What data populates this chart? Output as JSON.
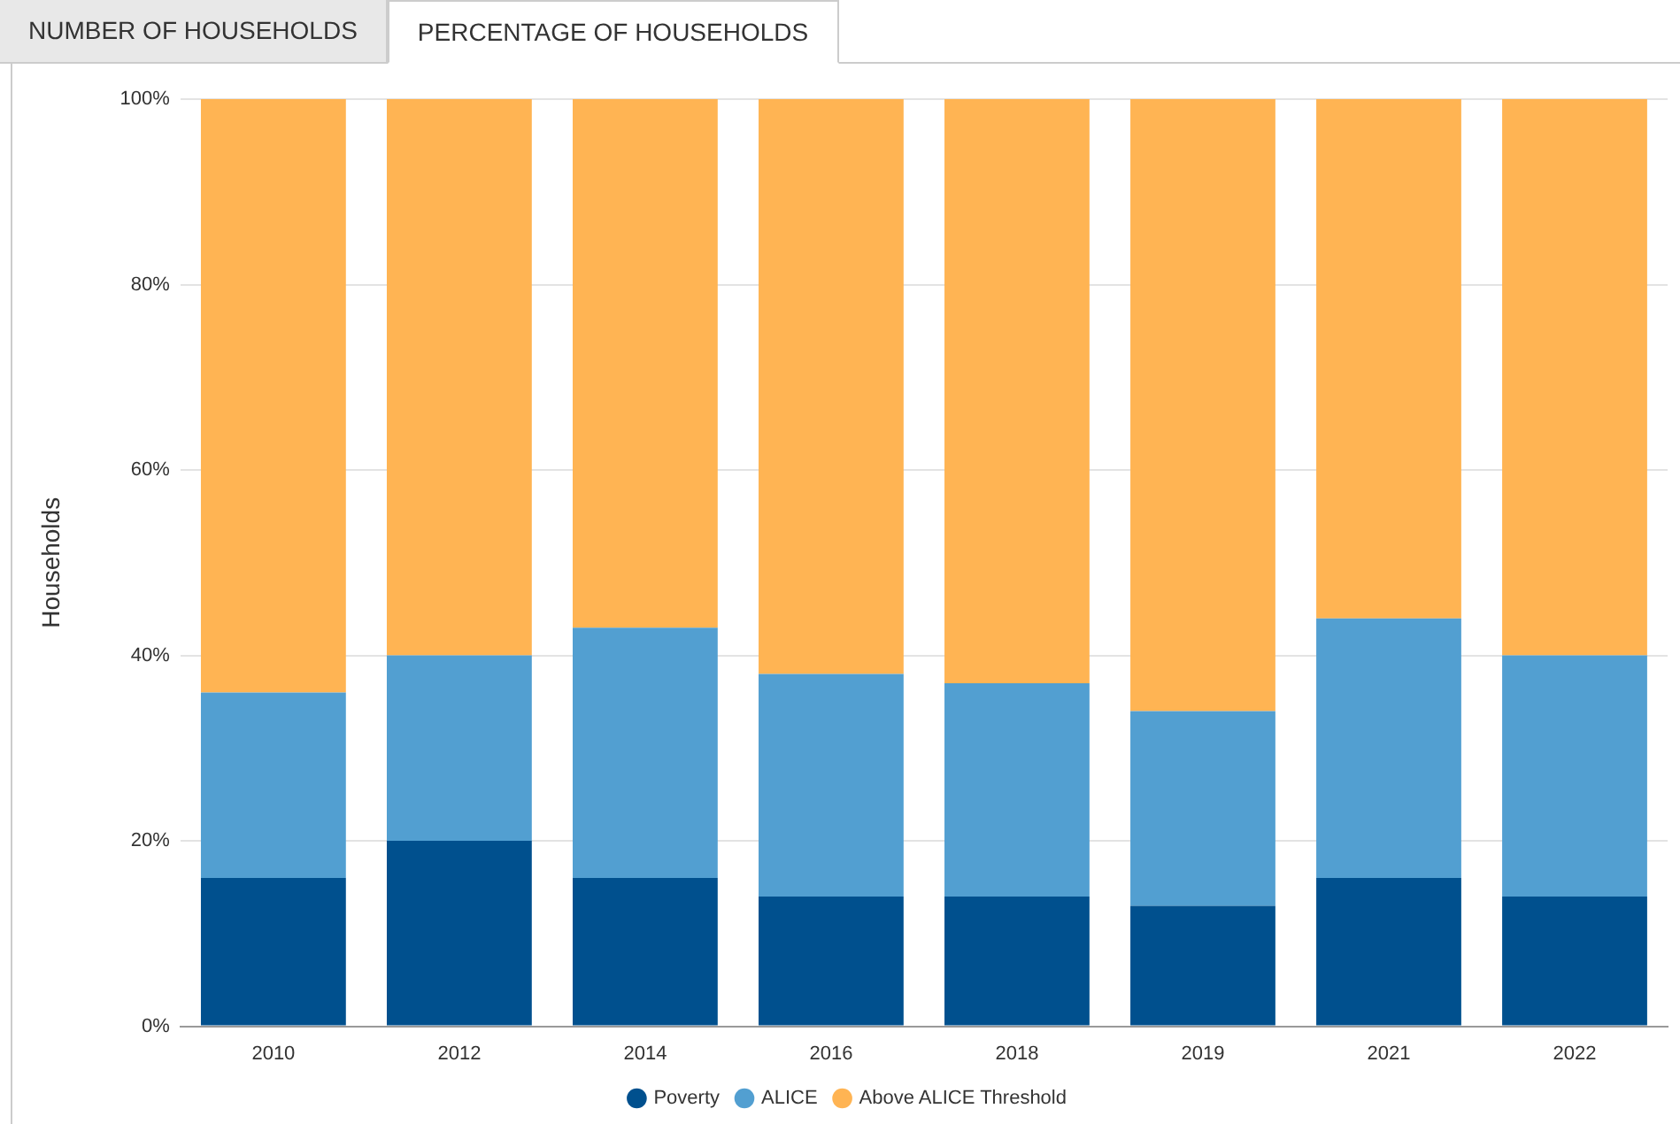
{
  "chart_data": {
    "type": "bar",
    "stacked": true,
    "ylabel": "Households",
    "annotations": [
      "NUMBER OF HOUSEHOLDS",
      "PERCENTAGE OF HOUSEHOLDS"
    ],
    "categories": [
      "2010",
      "2012",
      "2014",
      "2016",
      "2018",
      "2019",
      "2021",
      "2022"
    ],
    "series": [
      {
        "name": "Poverty",
        "color": "#00508e",
        "values": [
          16,
          20,
          16,
          14,
          14,
          13,
          16,
          14
        ]
      },
      {
        "name": "ALICE",
        "color": "#529fd1",
        "values": [
          20,
          20,
          27,
          24,
          23,
          21,
          28,
          26
        ]
      },
      {
        "name": "Above ALICE Threshold",
        "color": "#ffb453",
        "values": [
          64,
          60,
          57,
          62,
          63,
          66,
          56,
          60
        ]
      }
    ],
    "ylim": [
      0,
      100
    ],
    "yticks": [
      {
        "value": 0,
        "label": "0%"
      },
      {
        "value": 20,
        "label": "20%"
      },
      {
        "value": 40,
        "label": "40%"
      },
      {
        "value": 60,
        "label": "60%"
      },
      {
        "value": 80,
        "label": "80%"
      },
      {
        "value": 100,
        "label": "100%"
      }
    ],
    "grid": "y",
    "legend": "bottom"
  }
}
